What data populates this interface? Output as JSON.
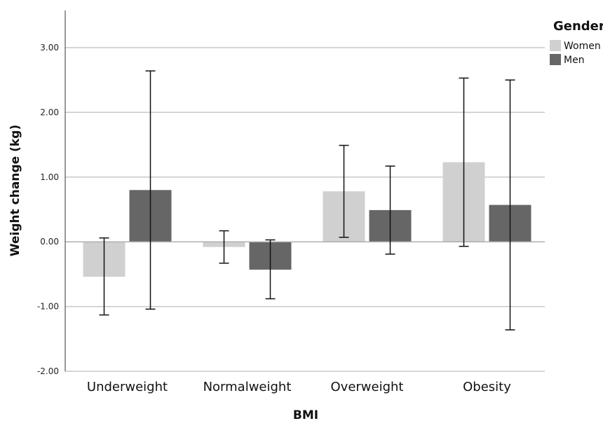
{
  "chart_data": {
    "type": "bar",
    "xlabel": "BMI",
    "ylabel": "Weight change (kg)",
    "categories": [
      "Underweight",
      "Normalweight",
      "Overweight",
      "Obesity"
    ],
    "ylim": [
      -2.0,
      3.5
    ],
    "yticks": [
      -2.0,
      -1.0,
      0.0,
      1.0,
      2.0,
      3.0
    ],
    "ytick_labels": [
      "-2.00",
      "-1.00",
      "0.00",
      "1.00",
      "2.00",
      "3.00"
    ],
    "grid": true,
    "legend": {
      "title": "Gender",
      "position": "right"
    },
    "series": [
      {
        "name": "Women",
        "color": "#d0d0d0",
        "values": [
          -0.54,
          -0.08,
          0.78,
          1.23
        ],
        "error_low": [
          -1.13,
          -0.33,
          0.07,
          -0.07
        ],
        "error_high": [
          0.06,
          0.17,
          1.49,
          2.53
        ]
      },
      {
        "name": "Men",
        "color": "#666666",
        "values": [
          0.8,
          -0.43,
          0.49,
          0.57
        ],
        "error_low": [
          -1.04,
          -0.88,
          -0.19,
          -1.36
        ],
        "error_high": [
          2.64,
          0.03,
          1.17,
          2.5
        ]
      }
    ]
  }
}
